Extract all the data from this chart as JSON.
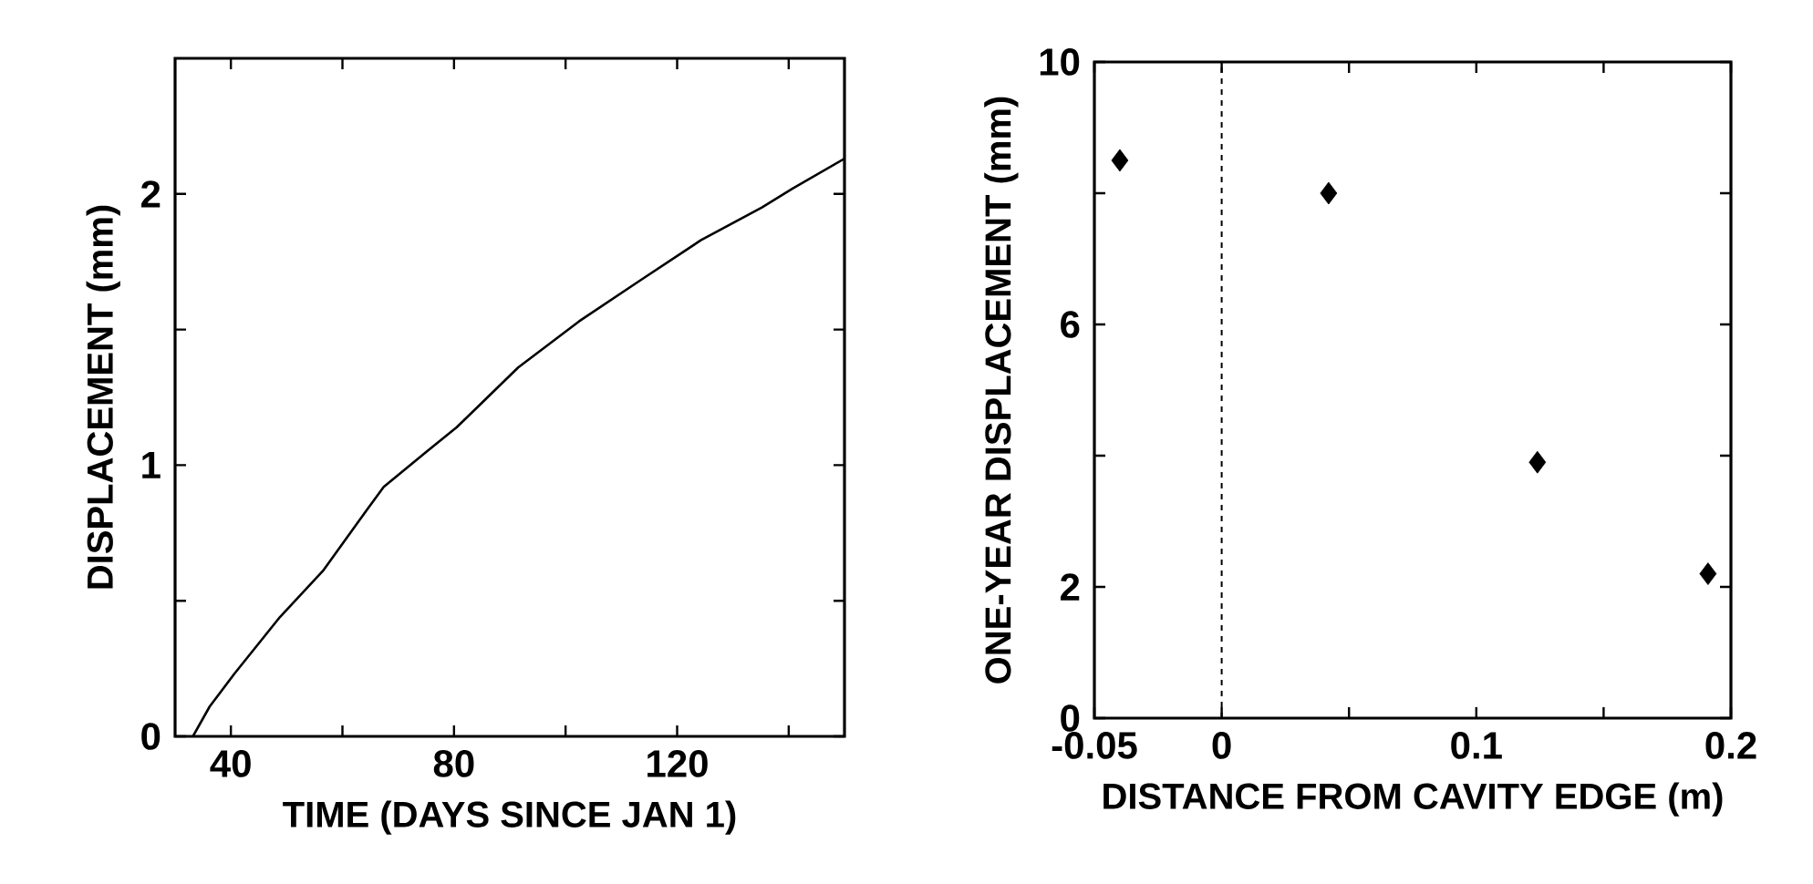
{
  "chart_data": [
    {
      "type": "line",
      "xlabel": "TIME (DAYS SINCE JAN 1)",
      "ylabel": "DISPLACEMENT (mm)",
      "xlim": [
        30,
        150
      ],
      "ylim": [
        0,
        2.5
      ],
      "xticks": [
        40,
        {
          "value": 60,
          "label": null
        },
        80,
        {
          "value": 100,
          "label": null
        },
        120,
        {
          "value": 140,
          "label": null
        }
      ],
      "yticks": [
        0,
        {
          "value": 0.5,
          "label": null
        },
        1,
        {
          "value": 1.5,
          "label": null
        },
        2
      ],
      "series": [
        {
          "color": "#000000",
          "x": [
            33.2,
            36.2,
            40.6,
            48.8,
            56.5,
            64.2,
            67.4,
            75.1,
            80.5,
            91.5,
            102.4,
            113.3,
            124.3,
            135.2,
            140.7,
            150
          ],
          "values": [
            0,
            0.11,
            0.23,
            0.44,
            0.61,
            0.83,
            0.92,
            1.05,
            1.14,
            1.36,
            1.53,
            1.68,
            1.83,
            1.95,
            2.02,
            2.13
          ]
        }
      ],
      "marker": "none",
      "line_style": "solid",
      "grid": false
    },
    {
      "type": "scatter",
      "xlabel": "DISTANCE FROM CAVITY EDGE (m)",
      "ylabel": "ONE-YEAR DISPLACEMENT (mm)",
      "xlim": [
        -0.05,
        0.2
      ],
      "ylim": [
        0,
        10
      ],
      "xticks": [
        -0.05,
        0,
        {
          "value": 0.05,
          "label": null
        },
        0.1,
        {
          "value": 0.15,
          "label": null
        },
        0.2
      ],
      "yticks": [
        0,
        2,
        {
          "value": 4,
          "label": null
        },
        6,
        {
          "value": 8,
          "label": null
        },
        10
      ],
      "series": [
        {
          "color": "#000000",
          "x": [
            -0.04,
            0.042,
            0.124,
            0.191
          ],
          "values": [
            8.5,
            8.0,
            3.9,
            2.2
          ]
        }
      ],
      "marker": "diamond",
      "grid": false,
      "ref_lines": [
        {
          "axis": "x",
          "value": 0,
          "line_style": "dashed",
          "color": "#000000"
        }
      ]
    }
  ]
}
